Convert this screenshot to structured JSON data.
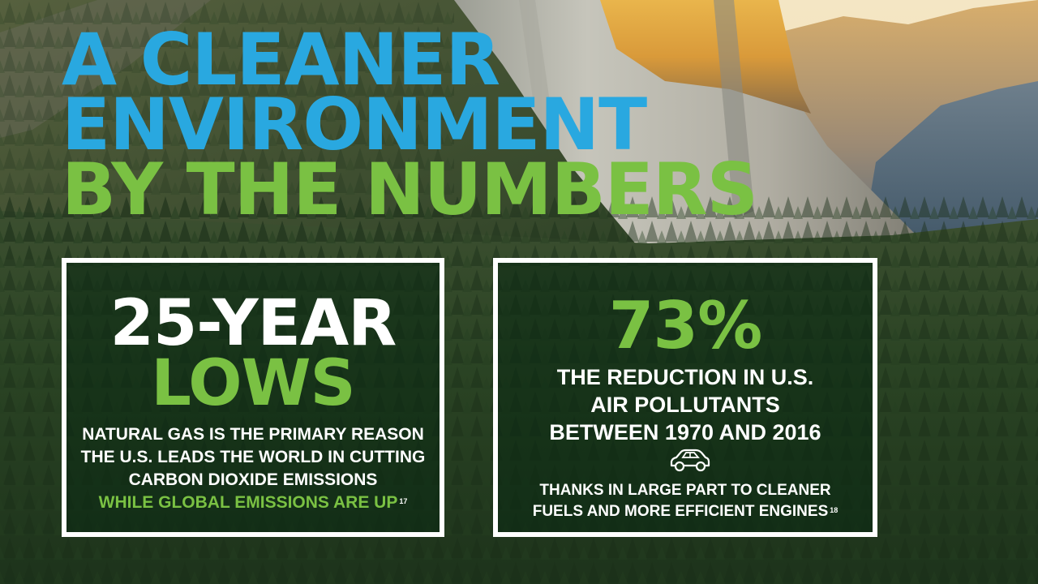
{
  "headline": {
    "line1": "A CLEANER",
    "line2": "ENVIRONMENT",
    "line3": "BY THE NUMBERS"
  },
  "cards": [
    {
      "big_line1": "25-YEAR",
      "big_line2": "LOWS",
      "desc_lines": [
        "NATURAL GAS IS THE PRIMARY REASON",
        "THE U.S. LEADS THE WORLD IN CUTTING",
        "CARBON DIOXIDE EMISSIONS"
      ],
      "highlight": "WHILE GLOBAL EMISSIONS ARE UP",
      "footnote": "17"
    },
    {
      "big_line1": "73%",
      "desc_lines": [
        "THE REDUCTION IN U.S.",
        "AIR POLLUTANTS",
        "BETWEEN 1970 AND 2016"
      ],
      "icon": "car-icon",
      "foot_lines": [
        "THANKS IN LARGE PART TO CLEANER",
        "FUELS AND MORE EFFICIENT ENGINES"
      ],
      "footnote": "18"
    }
  ],
  "colors": {
    "blue": "#29a8e0",
    "green": "#7ac143",
    "white": "#ffffff"
  }
}
